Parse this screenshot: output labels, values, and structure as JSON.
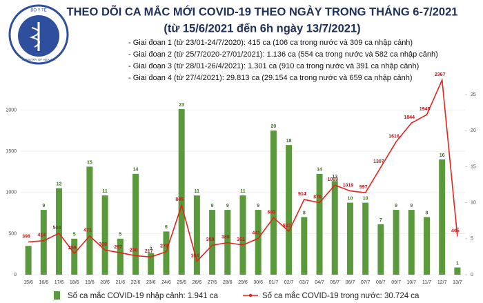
{
  "logo": {
    "top": "BỘ Y TẾ",
    "bottom": "MINISTRY OF HEALTH"
  },
  "chart_data": {
    "type": "bar",
    "title": "THEO DÕI CA MẮC MỚI COVID-19 THEO NGÀY TRONG THÁNG 6-7/2021",
    "subtitle": "(từ 15/6/2021 đến 6h ngày 13/7/2021)",
    "notes": [
      "- Giai đoạn 1 (từ 23/01-24/7/2020): 415 ca (106 ca trong nước và 309 ca nhập cảnh)",
      "- Giai đoạn 2 (từ 25/7/2020-27/01/2021): 1.136 ca (554 ca trong nước và 582 ca nhập cảnh)",
      "- Giai đoạn 3 (từ 28/01-26/4/2021): 1.301 ca (910 ca trong nước và 391 ca nhập cảnh)",
      "- Giai đoạn 4 (từ 27/4/2021): 29.813 ca (29.154 ca trong nước và 659 ca nhập cảnh)"
    ],
    "categories": [
      "15/6",
      "16/6",
      "17/6",
      "18/6",
      "19/6",
      "20/6",
      "21/6",
      "22/6",
      "23/6",
      "24/6",
      "25/6",
      "26/6",
      "27/6",
      "28/6",
      "29/6",
      "30/6",
      "01/7",
      "02/7",
      "03/7",
      "04/7",
      "05/7",
      "06/7",
      "07/7",
      "08/7",
      "09/7",
      "10/7",
      "11/7",
      "12/7",
      "13/7"
    ],
    "series": [
      {
        "name": "Số ca mắc COVID-19 nhập cảnh: 1.941 ca",
        "type": "bar",
        "axis": "y2",
        "color": "#5b9a3c",
        "values": [
          4,
          9,
          12,
          5,
          15,
          11,
          5,
          14,
          3,
          6,
          23,
          11,
          9,
          9,
          11,
          9,
          20,
          18,
          8,
          14,
          13,
          10,
          10,
          7,
          9,
          9,
          8,
          16,
          1
        ],
        "value_labels": [
          null,
          "9",
          "12",
          "5",
          "15",
          "11",
          "5",
          "14",
          "3",
          "6",
          "23",
          "11",
          "9",
          "9",
          "11",
          "9",
          "20",
          "18",
          "8",
          "14",
          "13",
          "10",
          "10",
          "7",
          "9",
          "9",
          "8",
          "16",
          "1"
        ]
      },
      {
        "name": "Số ca mắc COVID-19 trong nước: 30.724 ca",
        "type": "line",
        "color": "#e2231a",
        "values": [
          398,
          414,
          503,
          259,
          471,
          300,
          267,
          230,
          217,
          279,
          845,
          164,
          359,
          389,
          361,
          441,
          693,
          527,
          914,
          876,
          1089,
          1019,
          997,
          1307,
          1616,
          1844,
          1945,
          2367,
          465
        ]
      }
    ],
    "ylim": [
      0,
      2400
    ],
    "yticks": [
      0,
      500,
      1000,
      1500,
      2000
    ],
    "y2lim": [
      0,
      27.4
    ],
    "y2ticks": [
      0,
      5,
      10,
      15,
      20,
      25
    ],
    "grid": true
  }
}
